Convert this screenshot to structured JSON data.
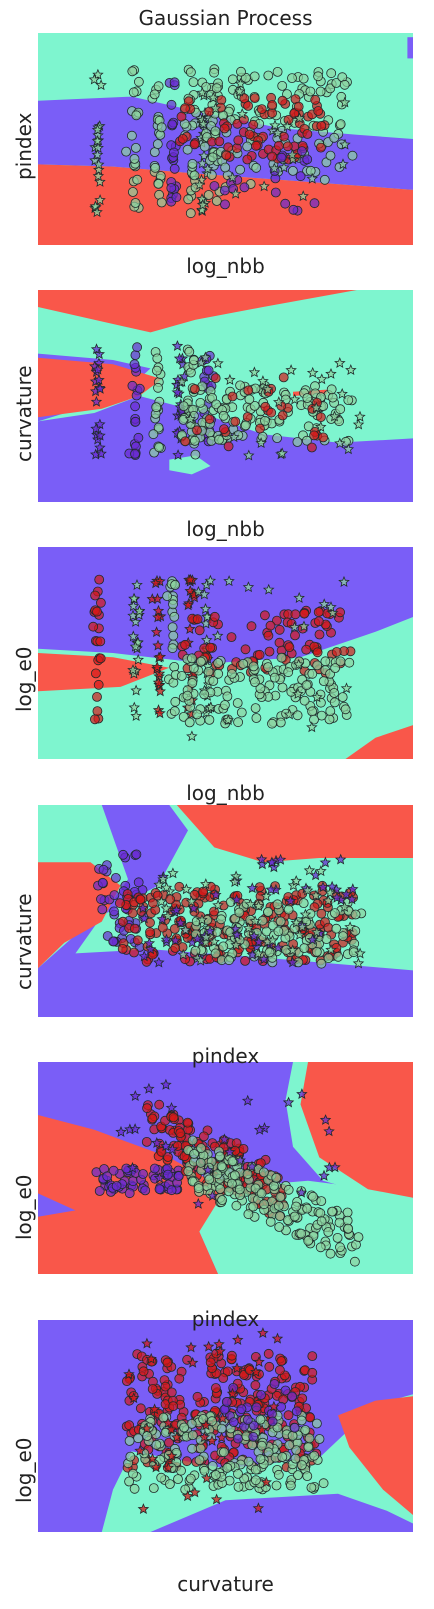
{
  "figure": {
    "title": "Gaussian Process"
  },
  "colors": {
    "region_red": "#f9574a",
    "region_cyan": "#7ef5cf",
    "region_purple": "#7a5ef7",
    "point_red": "#d41a1a",
    "point_green": "#8dd3a0",
    "point_purple": "#6a2bd0",
    "marker_edge": "#1f2a2a"
  },
  "chart_data": [
    {
      "type": "scatter",
      "title": "Gaussian Process",
      "xlabel": "log_nbb",
      "ylabel": "pindex",
      "grid": false,
      "legend": "none",
      "classes": [
        "red",
        "green",
        "purple"
      ],
      "markers": [
        "circle",
        "star"
      ],
      "background_regions": [
        "red",
        "cyan",
        "purple"
      ]
    },
    {
      "type": "scatter",
      "xlabel": "log_nbb",
      "ylabel": "curvature",
      "grid": false,
      "legend": "none",
      "classes": [
        "red",
        "green",
        "purple"
      ],
      "markers": [
        "circle",
        "star"
      ],
      "background_regions": [
        "red",
        "cyan",
        "purple"
      ]
    },
    {
      "type": "scatter",
      "xlabel": "log_nbb",
      "ylabel": "log_e0",
      "grid": false,
      "legend": "none",
      "classes": [
        "red",
        "green",
        "purple"
      ],
      "markers": [
        "circle",
        "star"
      ],
      "background_regions": [
        "red",
        "cyan",
        "purple"
      ]
    },
    {
      "type": "scatter",
      "xlabel": "pindex",
      "ylabel": "curvature",
      "grid": false,
      "legend": "none",
      "classes": [
        "red",
        "green",
        "purple"
      ],
      "markers": [
        "circle",
        "star"
      ],
      "background_regions": [
        "red",
        "cyan",
        "purple"
      ]
    },
    {
      "type": "scatter",
      "xlabel": "pindex",
      "ylabel": "log_e0",
      "grid": false,
      "legend": "none",
      "classes": [
        "red",
        "green",
        "purple"
      ],
      "markers": [
        "circle",
        "star"
      ],
      "background_regions": [
        "red",
        "cyan",
        "purple"
      ]
    },
    {
      "type": "scatter",
      "xlabel": "curvature",
      "ylabel": "log_e0",
      "grid": false,
      "legend": "none",
      "classes": [
        "red",
        "green",
        "purple"
      ],
      "markers": [
        "circle",
        "star"
      ],
      "background_regions": [
        "red",
        "cyan",
        "purple"
      ]
    }
  ]
}
